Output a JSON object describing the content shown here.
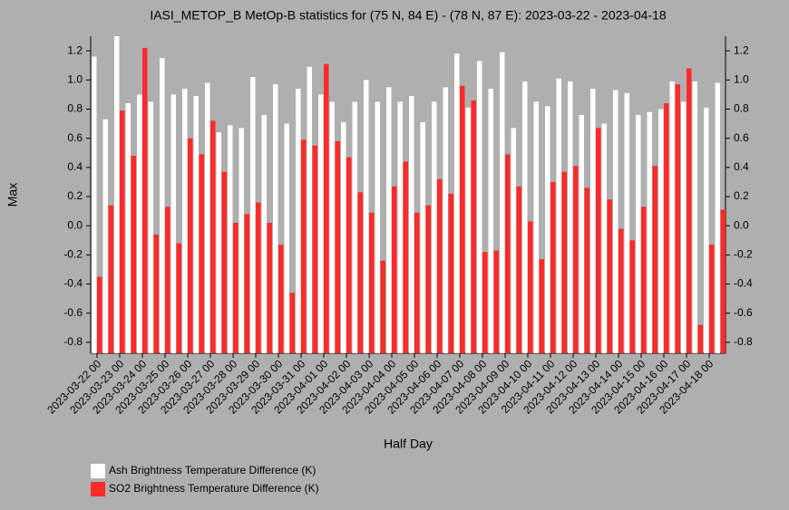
{
  "chart_data": {
    "type": "bar",
    "title": "IASI_METOP_B MetOp-B statistics for (75 N, 84 E) - (78 N, 87 E): 2023-03-22 - 2023-04-18",
    "x_label": "Half Day",
    "y_label": "Max",
    "categories": [
      "2023-03-22 00",
      null,
      "2023-03-23 00",
      null,
      "2023-03-24 00",
      null,
      "2023-03-25 00",
      null,
      "2023-03-26 00",
      null,
      "2023-03-27 00",
      null,
      "2023-03-28 00",
      null,
      "2023-03-29 00",
      null,
      "2023-03-30 00",
      null,
      "2023-03-31 00",
      null,
      "2023-04-01 00",
      null,
      "2023-04-02 00",
      null,
      "2023-04-03 00",
      null,
      "2023-04-04 00",
      null,
      "2023-04-05 00",
      null,
      "2023-04-06 00",
      null,
      "2023-04-07 00",
      null,
      "2023-04-08 00",
      null,
      "2023-04-09 00",
      null,
      "2023-04-10 00",
      null,
      "2023-04-11 00",
      null,
      "2023-04-12 00",
      null,
      "2023-04-13 00",
      null,
      "2023-04-14 00",
      null,
      "2023-04-15 00",
      null,
      "2023-04-16 00",
      null,
      "2023-04-17 00",
      null,
      "2023-04-18 00",
      null
    ],
    "series": [
      {
        "name": "Ash Brightness Temperature Difference (K)",
        "color": "#ffffff",
        "values": [
          1.16,
          0.73,
          1.3,
          0.84,
          0.9,
          0.85,
          1.15,
          0.9,
          0.94,
          0.89,
          0.98,
          0.64,
          0.69,
          0.67,
          1.02,
          0.76,
          0.97,
          0.7,
          0.94,
          1.09,
          0.9,
          0.85,
          0.71,
          0.85,
          1.0,
          0.85,
          0.95,
          0.85,
          0.89,
          0.71,
          0.85,
          0.95,
          1.18,
          0.81,
          1.13,
          0.94,
          1.19,
          0.67,
          0.99,
          0.85,
          0.82,
          1.01,
          0.99,
          0.76,
          0.94,
          0.7,
          0.93,
          0.91,
          0.76,
          0.78,
          0.8,
          0.99,
          0.85,
          0.99,
          0.81,
          0.98
        ]
      },
      {
        "name": "SO2 Brightness Temperature Difference (K)",
        "color": "#ff2a2a",
        "values": [
          -0.35,
          0.14,
          0.79,
          0.48,
          1.22,
          -0.06,
          0.13,
          -0.12,
          0.6,
          0.49,
          0.72,
          0.37,
          0.02,
          0.08,
          0.16,
          0.02,
          -0.13,
          -0.46,
          0.59,
          0.55,
          1.11,
          0.58,
          0.47,
          0.23,
          0.09,
          -0.24,
          0.27,
          0.44,
          0.09,
          0.14,
          0.32,
          0.22,
          0.96,
          0.86,
          -0.18,
          -0.17,
          0.49,
          0.27,
          0.03,
          -0.23,
          0.3,
          0.37,
          0.41,
          0.26,
          0.67,
          0.18,
          -0.02,
          -0.1,
          0.13,
          0.41,
          0.84,
          0.97,
          1.08,
          -0.68,
          -0.13,
          0.11
        ]
      }
    ],
    "ylim": [
      -0.875,
      1.3
    ],
    "yticks": [
      -0.8,
      -0.6,
      -0.4,
      -0.2,
      {
        "value": 0,
        "label": "0.0"
      },
      0.2,
      0.4,
      0.6,
      0.8,
      {
        "value": 1,
        "label": "1.0"
      },
      1.2
    ]
  }
}
